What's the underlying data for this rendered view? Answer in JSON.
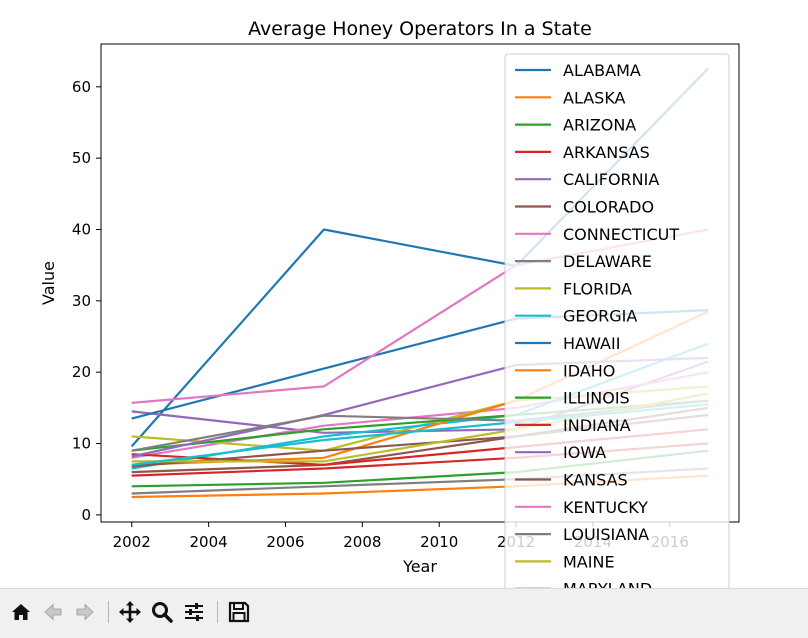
{
  "chart_data": {
    "type": "line",
    "title": "Average Honey Operators In a State",
    "xlabel": "Year",
    "ylabel": "Value",
    "xlim": [
      2001.2,
      2017.8
    ],
    "ylim": [
      -1.0,
      66.0
    ],
    "xticks": [
      2002,
      2004,
      2006,
      2008,
      2010,
      2012,
      2014,
      2016
    ],
    "yticks": [
      0,
      10,
      20,
      30,
      40,
      50,
      60
    ],
    "legend_position": "upper right",
    "x": [
      2002,
      2007,
      2012,
      2017
    ],
    "series": [
      {
        "name": "ALABAMA",
        "color": "#1f77b4",
        "values": [
          9.6,
          40.0,
          34.9,
          62.6
        ]
      },
      {
        "name": "ALASKA",
        "color": "#ff7f0e",
        "values": [
          2.5,
          3.0,
          4.0,
          5.5
        ]
      },
      {
        "name": "ARIZONA",
        "color": "#2ca02c",
        "values": [
          4.0,
          4.5,
          6.0,
          9.0
        ]
      },
      {
        "name": "ARKANSAS",
        "color": "#d62728",
        "values": [
          5.5,
          6.5,
          8.0,
          10.0
        ]
      },
      {
        "name": "CALIFORNIA",
        "color": "#9467bd",
        "values": [
          14.5,
          11.5,
          12.0,
          21.5
        ]
      },
      {
        "name": "COLORADO",
        "color": "#8c564b",
        "values": [
          6.0,
          7.0,
          11.0,
          15.0
        ]
      },
      {
        "name": "CONNECTICUT",
        "color": "#e377c2",
        "values": [
          8.0,
          12.5,
          15.0,
          20.0
        ]
      },
      {
        "name": "DELAWARE",
        "color": "#7f7f7f",
        "values": [
          3.0,
          4.0,
          5.0,
          6.5
        ]
      },
      {
        "name": "FLORIDA",
        "color": "#bcbd22",
        "values": [
          11.0,
          9.0,
          16.0,
          18.0
        ]
      },
      {
        "name": "GEORGIA",
        "color": "#17becf",
        "values": [
          6.5,
          11.0,
          14.0,
          24.0
        ]
      },
      {
        "name": "HAWAII",
        "color": "#1f77b4",
        "values": [
          13.5,
          20.5,
          27.5,
          28.7
        ]
      },
      {
        "name": "IDAHO",
        "color": "#ff7f0e",
        "values": [
          7.0,
          8.0,
          16.0,
          28.5
        ]
      },
      {
        "name": "ILLINOIS",
        "color": "#2ca02c",
        "values": [
          9.0,
          12.0,
          14.0,
          16.0
        ]
      },
      {
        "name": "INDIANA",
        "color": "#d62728",
        "values": [
          8.5,
          7.0,
          9.5,
          12.0
        ]
      },
      {
        "name": "IOWA",
        "color": "#9467bd",
        "values": [
          8.2,
          14.0,
          21.0,
          22.0
        ]
      },
      {
        "name": "KANSAS",
        "color": "#8c564b",
        "values": [
          6.8,
          9.0,
          11.0,
          14.0
        ]
      },
      {
        "name": "KENTUCKY",
        "color": "#e377c2",
        "values": [
          15.7,
          18.0,
          35.0,
          40.0
        ]
      },
      {
        "name": "LOUISIANA",
        "color": "#7f7f7f",
        "values": [
          9.0,
          13.9,
          13.2,
          16.0
        ]
      },
      {
        "name": "MAINE",
        "color": "#bcbd22",
        "values": [
          7.5,
          7.5,
          12.0,
          17.0
        ]
      },
      {
        "name": "MARYLAND",
        "color": "#17becf",
        "values": [
          7.0,
          10.5,
          13.0,
          15.5
        ]
      }
    ]
  },
  "toolbar": {
    "buttons": [
      {
        "name": "home-button",
        "icon": "home-icon"
      },
      {
        "name": "back-button",
        "icon": "back-arrow-icon"
      },
      {
        "name": "forward-button",
        "icon": "forward-arrow-icon"
      },
      {
        "name": "pan-button",
        "icon": "move-icon"
      },
      {
        "name": "zoom-button",
        "icon": "magnifier-icon"
      },
      {
        "name": "configure-subplots-button",
        "icon": "sliders-icon"
      },
      {
        "name": "save-button",
        "icon": "floppy-disk-icon"
      }
    ]
  }
}
